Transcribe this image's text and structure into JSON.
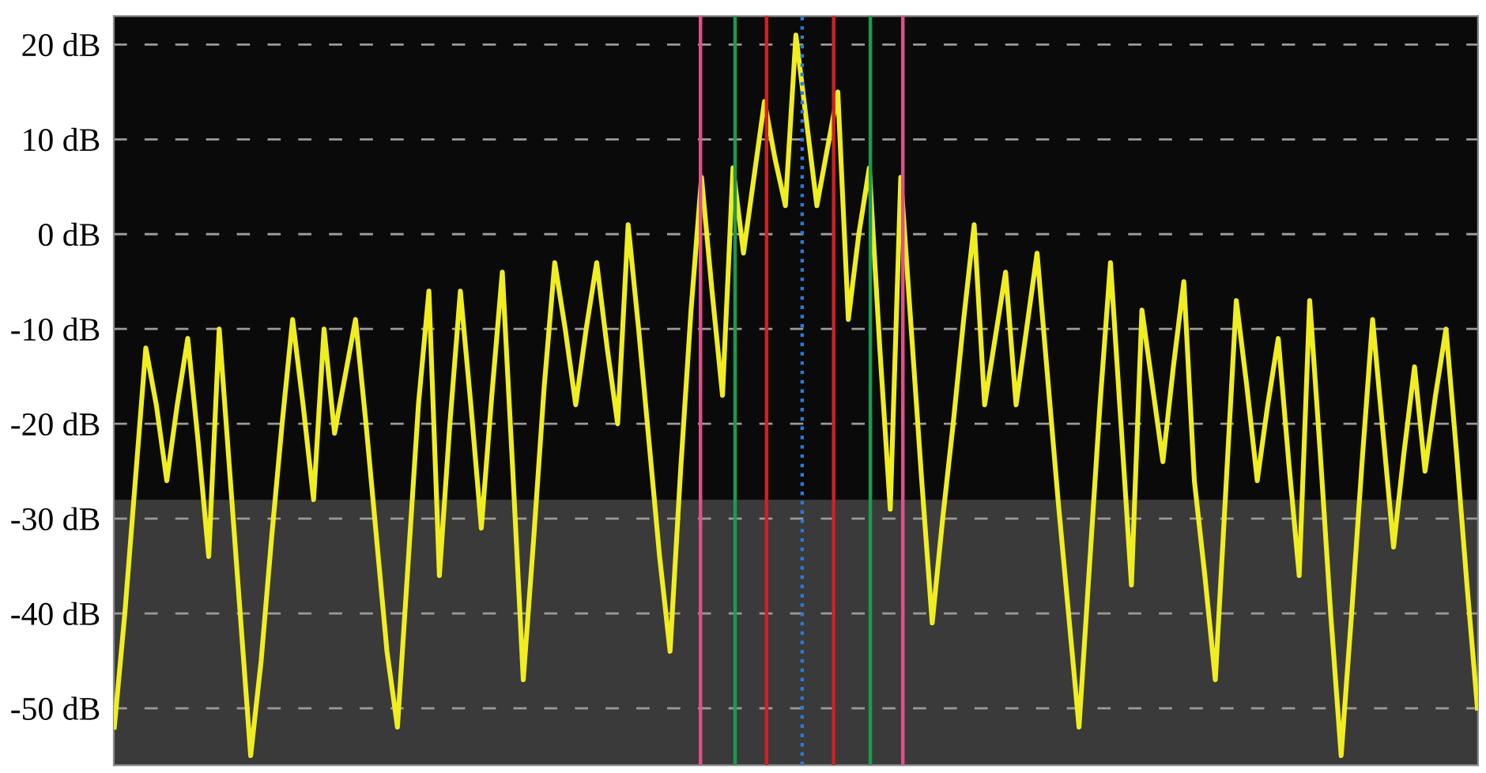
{
  "chart_data": {
    "type": "line",
    "categories": [
      null,
      null,
      null,
      null,
      null,
      null,
      null,
      null,
      null,
      null,
      null,
      null,
      null,
      null,
      null,
      null,
      null,
      null,
      null,
      null,
      null,
      null,
      null,
      null,
      null,
      null,
      null,
      null,
      null,
      null,
      null,
      null,
      null,
      null,
      null,
      null,
      null,
      null,
      null,
      null,
      null,
      null,
      null,
      null,
      null,
      null,
      null,
      null,
      null,
      null,
      null,
      null,
      null,
      null,
      null,
      null,
      null,
      null,
      null,
      null,
      null,
      null,
      null,
      null,
      null,
      null,
      null,
      null,
      null,
      null,
      null,
      null,
      null,
      null,
      null,
      null,
      null,
      null,
      null,
      null,
      null,
      null,
      null,
      null,
      null,
      null,
      null,
      null,
      null,
      null,
      null,
      null,
      null,
      null,
      null,
      null,
      null,
      null,
      null,
      null,
      null,
      null,
      null,
      null,
      null,
      null,
      null,
      null,
      null,
      null,
      null,
      null,
      null,
      null,
      null,
      null,
      null,
      null,
      null,
      null,
      null,
      null,
      null,
      null,
      null,
      null,
      null,
      null,
      null,
      null,
      null
    ],
    "series": [
      {
        "color": "#f0ee1e",
        "values": [
          -52,
          -40,
          -26,
          -12,
          -18,
          -26,
          -18,
          -11,
          -22,
          -34,
          -10,
          -25,
          -40,
          -55,
          -45,
          -32,
          -20,
          -9,
          -18,
          -28,
          -10,
          -21,
          -15,
          -9,
          -20,
          -32,
          -44,
          -52,
          -35,
          -18,
          -6,
          -36,
          -20,
          -6,
          -18,
          -31,
          -17,
          -4,
          -25,
          -47,
          -32,
          -16,
          -3,
          -10,
          -18,
          -10,
          -3,
          -12,
          -20,
          1,
          -10,
          -22,
          -34,
          -44,
          -25,
          -8,
          6,
          -6,
          -17,
          7,
          -2,
          6,
          14,
          8,
          3,
          21,
          12,
          3,
          9,
          15,
          -9,
          0,
          7,
          -12,
          -29,
          6,
          -10,
          -26,
          -41,
          -30,
          -20,
          -9,
          1,
          -18,
          -11,
          -4,
          -18,
          -10,
          -2,
          -15,
          -28,
          -40,
          -52,
          -35,
          -18,
          -3,
          -20,
          -37,
          -8,
          -16,
          -24,
          -14,
          -5,
          -26,
          -36,
          -47,
          -27,
          -7,
          -16,
          -26,
          -18,
          -11,
          -24,
          -36,
          -7,
          -23,
          -40,
          -55,
          -40,
          -24,
          -9,
          -21,
          -33,
          -23,
          -14,
          -25,
          -17,
          -10,
          -23,
          -37,
          -50
        ]
      }
    ],
    "ylim": [
      -56,
      23
    ],
    "yticks": [
      {
        "value": 20,
        "label": "20 dB"
      },
      {
        "value": 10,
        "label": "10 dB"
      },
      {
        "value": 0,
        "label": "0 dB"
      },
      {
        "value": -10,
        "label": "-10 dB"
      },
      {
        "value": -20,
        "label": "-20 dB"
      },
      {
        "value": -30,
        "label": "-30 dB"
      },
      {
        "value": -40,
        "label": "-40 dB"
      },
      {
        "value": -50,
        "label": "-50 dB"
      }
    ],
    "tick_labels": "y",
    "grid": "y",
    "marker": "none",
    "line_style": "solid",
    "bands": [
      {
        "axis": "y",
        "from": -56,
        "to": -28,
        "color": "#3a3a3a"
      }
    ]
  }
}
